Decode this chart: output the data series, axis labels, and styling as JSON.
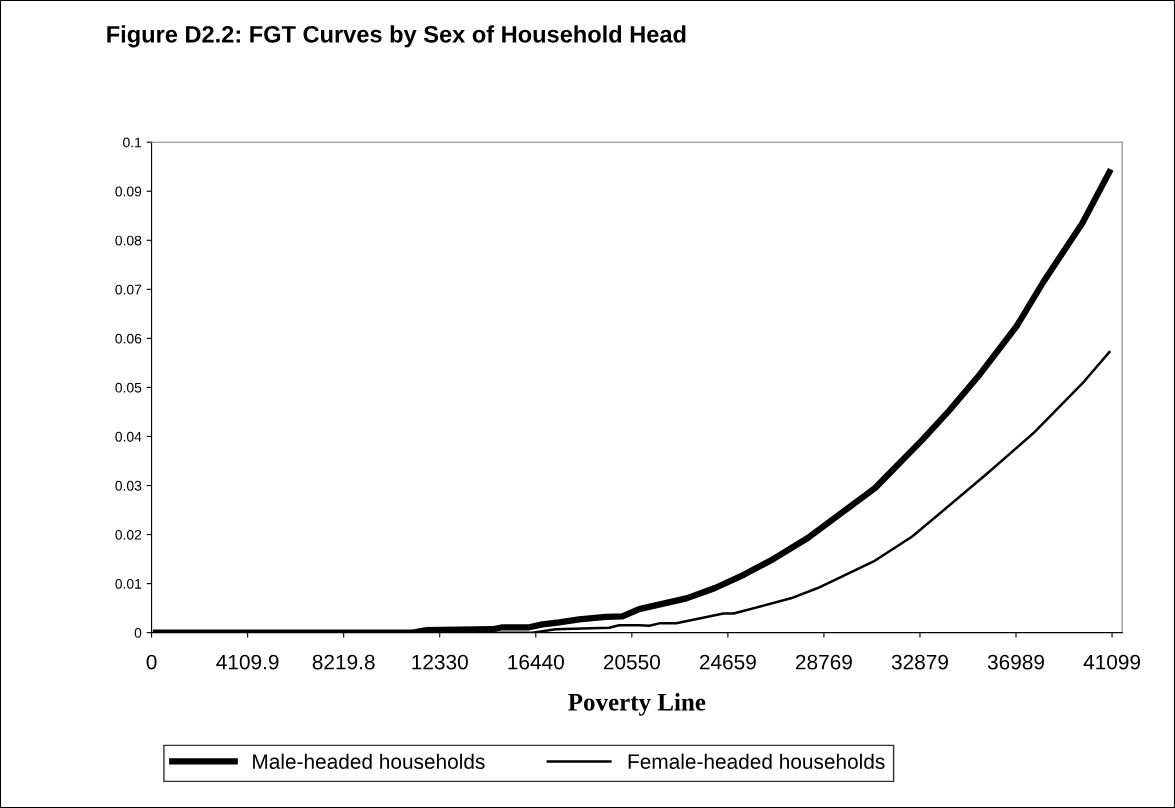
{
  "chart_data": {
    "type": "line",
    "title": "Figure D2.2: FGT Curves by Sex of Household Head",
    "xlabel": "Poverty Line",
    "xlim": [
      0,
      41530
    ],
    "xticks": [
      0,
      4109.9,
      8219.8,
      12330,
      16440,
      20550,
      24659,
      28769,
      32879,
      36989,
      41099
    ],
    "ylim": [
      0,
      0.1
    ],
    "yticks": [
      0,
      0.01,
      0.02,
      0.03,
      0.04,
      0.05,
      0.06,
      0.07,
      0.08,
      0.09,
      0.1
    ],
    "grid": false,
    "legend": "bottom",
    "marker": "none",
    "line_style": "solid",
    "series": [
      {
        "name": "Male-headed households",
        "color": "#000000",
        "x": [
          185,
          11166,
          11737,
          14588,
          15016,
          16157,
          16727,
          17440,
          18296,
          19436,
          20146,
          20862,
          22885,
          24111,
          25337,
          26490,
          28077,
          30961,
          31682,
          32980,
          34133,
          35431,
          37017,
          38171,
          39829,
          40983
        ],
        "values": [
          0,
          0,
          0.0005,
          0.0007,
          0.0011,
          0.0011,
          0.0017,
          0.0021,
          0.0027,
          0.0032,
          0.0033,
          0.0048,
          0.007,
          0.0091,
          0.0118,
          0.0147,
          0.0193,
          0.0295,
          0.033,
          0.0393,
          0.0453,
          0.0526,
          0.0625,
          0.0716,
          0.0835,
          0.0939
        ]
      },
      {
        "name": "Female-headed households",
        "color": "#000000",
        "x": [
          185,
          16300,
          17297,
          19579,
          20006,
          20862,
          21300,
          21732,
          22453,
          24472,
          24904,
          27356,
          28509,
          30961,
          32547,
          33700,
          35719,
          37738,
          39901,
          40983
        ],
        "values": [
          0,
          0,
          0.0007,
          0.001,
          0.0015,
          0.0015,
          0.0014,
          0.0019,
          0.0019,
          0.0039,
          0.0039,
          0.007,
          0.0091,
          0.0147,
          0.0196,
          0.0242,
          0.0323,
          0.0407,
          0.0512,
          0.0572
        ]
      }
    ]
  }
}
